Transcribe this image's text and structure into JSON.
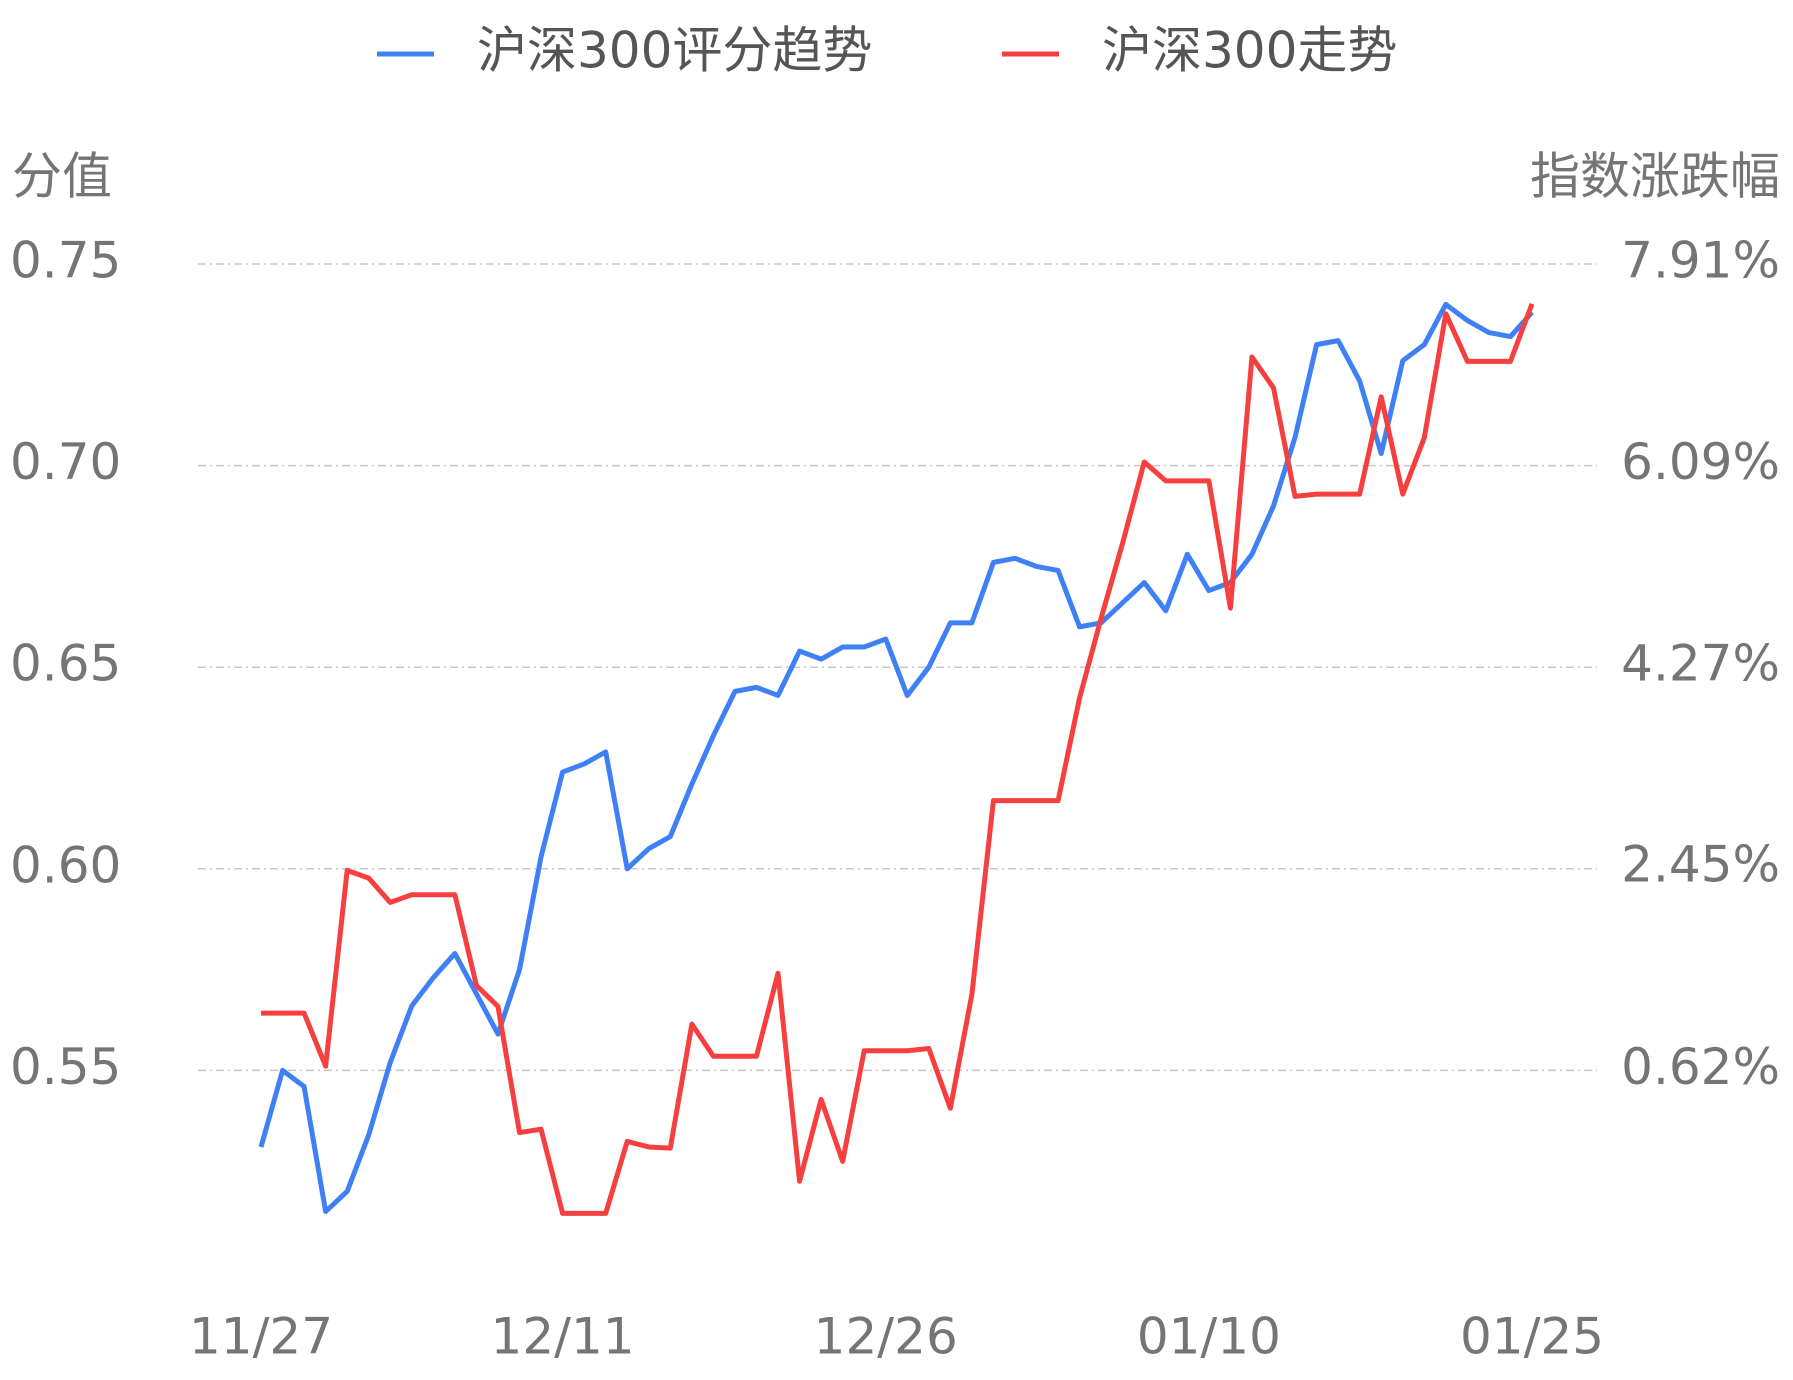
{
  "chart_data": {
    "type": "line",
    "legend": "top",
    "y_label": "分值",
    "y2_label": "指数涨跌幅",
    "categories": [
      "11/27",
      null,
      null,
      null,
      null,
      null,
      null,
      null,
      null,
      null,
      null,
      null,
      null,
      null,
      "12/11",
      null,
      null,
      null,
      null,
      null,
      null,
      null,
      null,
      null,
      null,
      null,
      null,
      null,
      null,
      "12/26",
      null,
      null,
      null,
      null,
      null,
      null,
      null,
      null,
      null,
      null,
      null,
      null,
      null,
      null,
      "01/10",
      null,
      null,
      null,
      null,
      null,
      null,
      null,
      null,
      null,
      null,
      null,
      null,
      null,
      null,
      "01/25"
    ],
    "series": [
      {
        "name": "沪深300评分趋势",
        "color": "#4080f6",
        "axis": "y",
        "values": [
          0.531,
          0.55,
          0.546,
          0.515,
          0.52,
          0.534,
          0.552,
          0.566,
          0.573,
          0.579,
          0.569,
          0.559,
          0.575,
          0.603,
          0.624,
          0.626,
          0.629,
          0.6,
          0.605,
          0.608,
          0.621,
          0.633,
          0.644,
          0.645,
          0.643,
          0.654,
          0.652,
          0.655,
          0.655,
          0.657,
          0.643,
          0.65,
          0.661,
          0.661,
          0.676,
          0.677,
          0.675,
          0.674,
          0.66,
          0.661,
          0.666,
          0.671,
          0.664,
          0.678,
          0.669,
          0.671,
          0.678,
          0.69,
          0.707,
          0.73,
          0.731,
          0.721,
          0.703,
          0.726,
          0.73,
          0.74,
          0.736,
          0.733,
          0.732,
          0.738
        ]
      },
      {
        "name": "沪深300走势",
        "color": "#f64040",
        "axis": "y2",
        "values": [
          1.14,
          1.14,
          1.14,
          0.66,
          2.43,
          2.36,
          2.14,
          2.21,
          2.21,
          2.21,
          1.39,
          1.2,
          0.06,
          0.09,
          -0.67,
          -0.67,
          -0.67,
          -0.02,
          -0.07,
          -0.08,
          1.04,
          0.75,
          0.75,
          0.75,
          1.5,
          -0.38,
          0.36,
          -0.2,
          0.8,
          0.8,
          0.8,
          0.82,
          0.28,
          1.31,
          3.06,
          3.06,
          3.06,
          3.06,
          3.99,
          4.71,
          5.39,
          6.12,
          5.95,
          5.95,
          5.95,
          4.8,
          7.07,
          6.79,
          5.81,
          5.83,
          5.83,
          5.83,
          6.71,
          5.83,
          6.34,
          7.46,
          7.03,
          7.03,
          7.03,
          7.55
        ]
      }
    ],
    "ylim": [
      0.5,
      0.75
    ],
    "yticks": [
      {
        "value": 0.75,
        "label": "0.75"
      },
      {
        "value": 0.7,
        "label": "0.70"
      },
      {
        "value": 0.65,
        "label": "0.65"
      },
      {
        "value": 0.6,
        "label": "0.60"
      },
      {
        "value": 0.55,
        "label": "0.55"
      }
    ],
    "y2lim": [
      -1.2,
      7.91
    ],
    "y2ticks": [
      {
        "value": 7.91,
        "label": "7.91%"
      },
      {
        "value": 6.09,
        "label": "6.09%"
      },
      {
        "value": 4.27,
        "label": "4.27%"
      },
      {
        "value": 2.45,
        "label": "2.45%"
      },
      {
        "value": 0.62,
        "label": "0.62%"
      }
    ],
    "grid": true
  }
}
